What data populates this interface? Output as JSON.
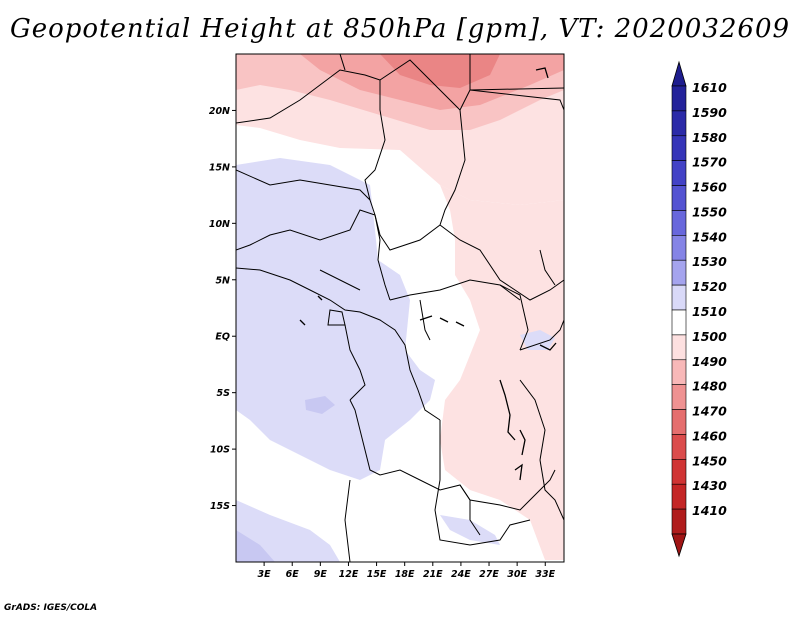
{
  "title": "Geopotential Height at 850hPa [gpm], VT: 2020032609",
  "footer": "GrADS: IGES/COLA",
  "map": {
    "lon_range": [
      0,
      35
    ],
    "lat_range": [
      -20,
      25
    ],
    "lat_ticks": [
      {
        "value": 20,
        "label": "20N"
      },
      {
        "value": 15,
        "label": "15N"
      },
      {
        "value": 10,
        "label": "10N"
      },
      {
        "value": 5,
        "label": "5N"
      },
      {
        "value": 0,
        "label": "EQ"
      },
      {
        "value": -5,
        "label": "5S"
      },
      {
        "value": -10,
        "label": "10S"
      },
      {
        "value": -15,
        "label": "15S"
      }
    ],
    "lon_ticks": [
      {
        "value": 3,
        "label": "3E"
      },
      {
        "value": 6,
        "label": "6E"
      },
      {
        "value": 9,
        "label": "9E"
      },
      {
        "value": 12,
        "label": "12E"
      },
      {
        "value": 15,
        "label": "15E"
      },
      {
        "value": 18,
        "label": "18E"
      },
      {
        "value": 21,
        "label": "21E"
      },
      {
        "value": 24,
        "label": "24E"
      },
      {
        "value": 27,
        "label": "27E"
      },
      {
        "value": 30,
        "label": "30E"
      },
      {
        "value": 33,
        "label": "33E"
      }
    ]
  },
  "colorbar": {
    "levels": [
      {
        "label": "1610",
        "color": "#23229a"
      },
      {
        "label": "1590",
        "color": "#2b2aa8"
      },
      {
        "label": "1580",
        "color": "#3534b8"
      },
      {
        "label": "1570",
        "color": "#4342c6"
      },
      {
        "label": "1560",
        "color": "#5453d2"
      },
      {
        "label": "1550",
        "color": "#6867dc"
      },
      {
        "label": "1540",
        "color": "#8584e6"
      },
      {
        "label": "1530",
        "color": "#a5a4ee"
      },
      {
        "label": "1520",
        "color": "#d9d9f8"
      },
      {
        "label": "1510",
        "color": "#ffffff"
      },
      {
        "label": "1500",
        "color": "#fde0e0"
      },
      {
        "label": "1490",
        "color": "#f8b8b8"
      },
      {
        "label": "1480",
        "color": "#ef9292"
      },
      {
        "label": "1470",
        "color": "#e56e6e"
      },
      {
        "label": "1460",
        "color": "#db4c4c"
      },
      {
        "label": "1450",
        "color": "#d03434"
      },
      {
        "label": "1430",
        "color": "#c42626"
      },
      {
        "label": "1410",
        "color": "#b01c1c"
      }
    ],
    "top_arrow_color": "#1e1d8e",
    "bottom_arrow_color": "#a01515"
  },
  "field_colors": {
    "blue_light": "#dcdcf8",
    "blue_mid": "#c8c8f2",
    "pink_light": "#fde2e2",
    "pink_mid": "#f9c4c4",
    "red_mid": "#f3a3a3",
    "red_dark": "#ea8585"
  }
}
